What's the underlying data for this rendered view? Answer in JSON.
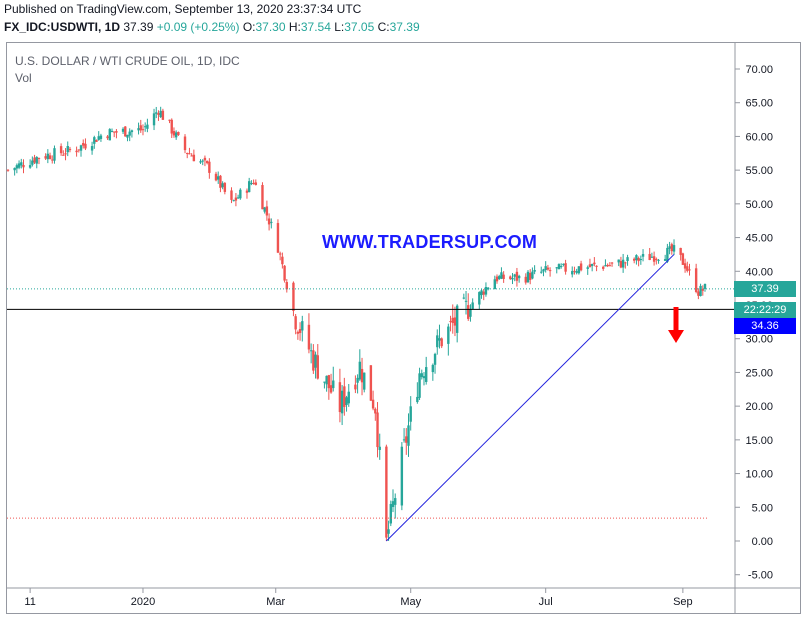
{
  "header": {
    "published": "Published on TradingView.com, September 13, 2020 23:37:34 UTC",
    "symbol": "FX_IDC:USDWTI, 1D",
    "last": "37.39",
    "change": "+0.09 (+0.25%)",
    "open_label": "O:",
    "open": "37.30",
    "high_label": "H:",
    "high": "37.54",
    "low_label": "L:",
    "low": "37.05",
    "close_label": "C:",
    "close": "37.39"
  },
  "chart_title": "U.S. DOLLAR / WTI CRUDE OIL, 1D, IDC",
  "volume_label": "Vol",
  "watermark": "WWW.TRADERSUP.COM",
  "tags": {
    "last_price": "37.39",
    "countdown": "22:22:29",
    "horizontal_line": "34.36"
  },
  "colors": {
    "up": "#26a69a",
    "down": "#ef5350",
    "trendline": "#2222dd",
    "hline": "#000000",
    "watermark": "#1c1cff",
    "arrow": "#ff0000"
  },
  "chart_data": {
    "type": "candlestick",
    "x_ticks": [
      "11",
      "2020",
      "Mar",
      "May",
      "Jul",
      "Sep"
    ],
    "y_ticks": [
      "70.00",
      "65.00",
      "60.00",
      "55.00",
      "50.00",
      "45.00",
      "40.00",
      "35.00",
      "30.00",
      "25.00",
      "20.00",
      "15.00",
      "10.00",
      "5.00",
      "0.00",
      "-5.00"
    ],
    "ylim": [
      -5,
      70
    ],
    "series": [
      {
        "values": [
          [
            "2019-11-01",
            55.0
          ],
          [
            "2019-11-15",
            57.0
          ],
          [
            "2019-12-01",
            58.0
          ],
          [
            "2019-12-15",
            60.5
          ],
          [
            "2020-01-01",
            61.0
          ],
          [
            "2020-01-08",
            64.0
          ],
          [
            "2020-01-20",
            58.0
          ],
          [
            "2020-02-01",
            55.0
          ],
          [
            "2020-02-10",
            50.0
          ],
          [
            "2020-02-20",
            53.5
          ],
          [
            "2020-03-01",
            45.0
          ],
          [
            "2020-03-09",
            34.0
          ],
          [
            "2020-03-18",
            27.0
          ],
          [
            "2020-03-30",
            20.0
          ],
          [
            "2020-04-08",
            26.0
          ],
          [
            "2020-04-15",
            20.0
          ],
          [
            "2020-04-20",
            0.0
          ],
          [
            "2020-04-27",
            12.0
          ],
          [
            "2020-05-05",
            25.0
          ],
          [
            "2020-05-15",
            30.0
          ],
          [
            "2020-05-25",
            34.0
          ],
          [
            "2020-06-08",
            39.0
          ],
          [
            "2020-06-20",
            39.0
          ],
          [
            "2020-07-01",
            40.0
          ],
          [
            "2020-07-15",
            40.5
          ],
          [
            "2020-08-01",
            41.0
          ],
          [
            "2020-08-15",
            42.0
          ],
          [
            "2020-08-28",
            43.0
          ],
          [
            "2020-09-02",
            41.0
          ],
          [
            "2020-09-08",
            37.0
          ],
          [
            "2020-09-11",
            37.39
          ]
        ]
      }
    ],
    "horizontal_line": 34.36,
    "last_price": 37.39,
    "trendline": [
      [
        "2020-04-20",
        0.0
      ],
      [
        "2020-08-28",
        42.5
      ]
    ]
  }
}
